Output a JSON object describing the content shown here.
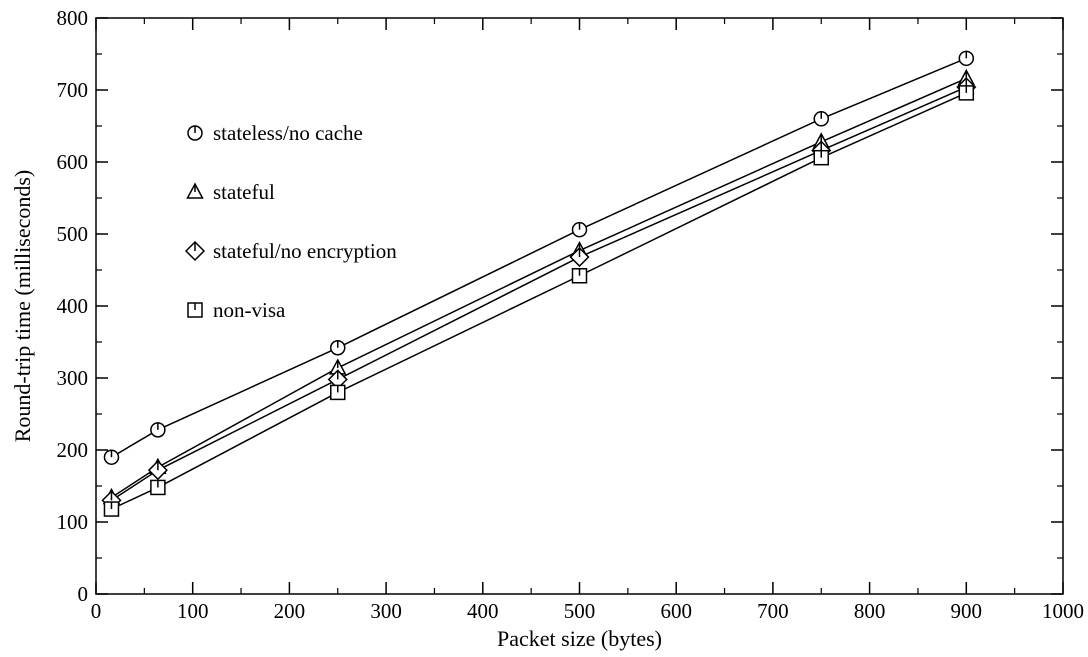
{
  "chart_data": {
    "type": "line",
    "title": "",
    "xlabel": "Packet size (bytes)",
    "ylabel": "Round-trip time (milliseconds)",
    "xlim": [
      0,
      1000
    ],
    "ylim": [
      0,
      800
    ],
    "xticks": [
      0,
      100,
      200,
      300,
      400,
      500,
      600,
      700,
      800,
      900,
      1000
    ],
    "yticks": [
      0,
      100,
      200,
      300,
      400,
      500,
      600,
      700,
      800
    ],
    "grid": false,
    "legend_position": "top-left",
    "x": [
      16,
      64,
      250,
      500,
      750,
      900
    ],
    "series": [
      {
        "name": "stateless/no cache",
        "marker": "circle",
        "values": [
          190,
          228,
          342,
          506,
          660,
          744
        ]
      },
      {
        "name": "stateful",
        "marker": "triangle",
        "values": [
          134,
          176,
          314,
          477,
          628,
          716
        ]
      },
      {
        "name": "stateful/no encryption",
        "marker": "diamond",
        "values": [
          130,
          172,
          298,
          468,
          616,
          704
        ]
      },
      {
        "name": "non-visa",
        "marker": "square",
        "values": [
          118,
          148,
          280,
          442,
          606,
          696
        ]
      }
    ],
    "colors": {
      "line": "#000000",
      "marker_fill": "#ffffff"
    }
  }
}
